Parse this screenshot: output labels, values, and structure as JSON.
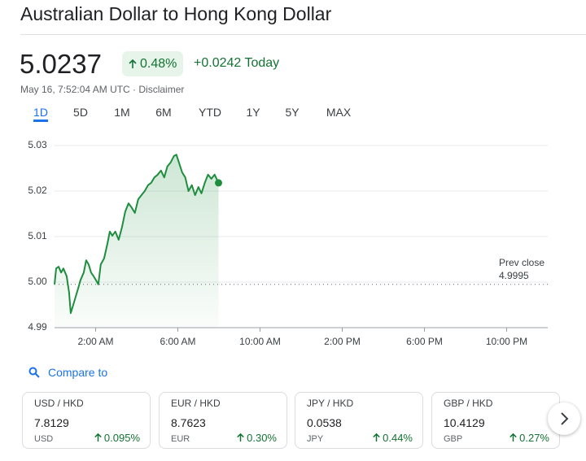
{
  "header": {
    "title": "Australian Dollar to Hong Kong Dollar",
    "price": "5.0237",
    "change_percent": "0.48%",
    "change_today": "+0.0242 Today",
    "timestamp": "May 16, 7:52:04 AM UTC · Disclaimer"
  },
  "tabs": [
    "1D",
    "5D",
    "1M",
    "6M",
    "YTD",
    "1Y",
    "5Y",
    "MAX"
  ],
  "chart_data": {
    "type": "line",
    "x": [
      0,
      0.08,
      0.2,
      0.32,
      0.43,
      0.59,
      0.71,
      0.79,
      0.91,
      1.03,
      1.15,
      1.26,
      1.42,
      1.54,
      1.66,
      1.78,
      1.9,
      2.02,
      2.13,
      2.25,
      2.41,
      2.57,
      2.69,
      2.81,
      2.96,
      3.12,
      3.28,
      3.44,
      3.6,
      3.75,
      3.91,
      4.07,
      4.23,
      4.39,
      4.55,
      4.7,
      4.86,
      5.02,
      5.18,
      5.34,
      5.49,
      5.65,
      5.81,
      5.93,
      6.05,
      6.21,
      6.36,
      6.52,
      6.68,
      6.84,
      7.0,
      7.15,
      7.31,
      7.47,
      7.63,
      7.79,
      7.98
    ],
    "series": [
      {
        "color": "#1e8e3e",
        "values": [
          4.9995,
          5.003,
          5.0034,
          5.0021,
          5.003,
          5.0013,
          4.9977,
          4.9932,
          4.995,
          4.9968,
          4.9986,
          5.0004,
          5.0021,
          5.0048,
          5.0039,
          5.0021,
          5.0013,
          5.0004,
          4.9995,
          5.0039,
          5.0052,
          5.0084,
          5.0111,
          5.0102,
          5.0111,
          5.0093,
          5.012,
          5.0155,
          5.0173,
          5.0164,
          5.0152,
          5.0182,
          5.0191,
          5.02,
          5.0213,
          5.0218,
          5.023,
          5.0236,
          5.0245,
          5.023,
          5.0254,
          5.0263,
          5.0277,
          5.028,
          5.0263,
          5.0241,
          5.023,
          5.02,
          5.0213,
          5.0191,
          5.0209,
          5.0195,
          5.0218,
          5.0236,
          5.0227,
          5.0236,
          5.0218
        ]
      }
    ],
    "xlim": [
      0,
      24
    ],
    "xticks": [
      {
        "value": 2,
        "label": "2:00 AM"
      },
      {
        "value": 6,
        "label": "6:00 AM"
      },
      {
        "value": 10,
        "label": "10:00 AM"
      },
      {
        "value": 14,
        "label": "2:00 PM"
      },
      {
        "value": 18,
        "label": "6:00 PM"
      },
      {
        "value": 22,
        "label": "10:00 PM"
      }
    ],
    "ylim": [
      4.99,
      5.03
    ],
    "yticks": [
      4.99,
      {
        "value": 5,
        "label": "5.00"
      },
      5.01,
      5.02,
      5.03
    ],
    "grid": true,
    "prev_close": {
      "label": "Prev close",
      "value": 4.9995
    }
  },
  "compare": {
    "label": "Compare to",
    "cards": [
      {
        "pair": "USD / HKD",
        "price": "7.8129",
        "currency": "USD",
        "change": "0.095%"
      },
      {
        "pair": "EUR / HKD",
        "price": "8.7623",
        "currency": "EUR",
        "change": "0.30%"
      },
      {
        "pair": "JPY / HKD",
        "price": "0.0538",
        "currency": "JPY",
        "change": "0.44%"
      },
      {
        "pair": "GBP / HKD",
        "price": "10.4129",
        "currency": "GBP",
        "change": "0.27%"
      }
    ]
  }
}
